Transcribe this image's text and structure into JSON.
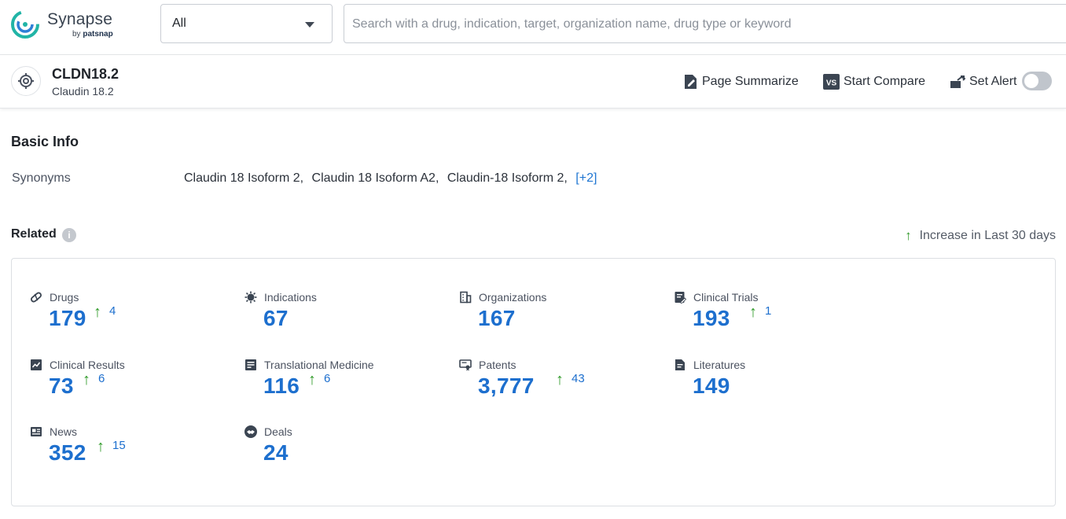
{
  "header": {
    "logo_name": "Synapse",
    "logo_by": "by",
    "logo_brand": "patsnap",
    "scope_select": {
      "value": "All"
    },
    "search": {
      "placeholder": "Search with a drug, indication, target, organization name, drug type or keyword",
      "value": ""
    }
  },
  "entity": {
    "name": "CLDN18.2",
    "subtitle": "Claudin 18.2",
    "actions": {
      "summarize": "Page Summarize",
      "compare": "Start Compare",
      "alert": "Set Alert"
    },
    "alert_enabled": false
  },
  "basic_info": {
    "title": "Basic Info",
    "synonyms_label": "Synonyms",
    "synonyms": [
      "Claudin 18 Isoform 2,",
      "Claudin 18 Isoform A2,",
      "Claudin-18 Isoform 2,"
    ],
    "synonyms_more": "[+2]"
  },
  "related": {
    "title": "Related",
    "increase_note": "Increase in Last 30 days",
    "colors": {
      "count": "#1d6fce",
      "increase_arrow": "#2f9a28"
    },
    "items": [
      {
        "label": "Drugs",
        "icon": "pill-icon",
        "count": "179",
        "increase": "4"
      },
      {
        "label": "Indications",
        "icon": "virus-icon",
        "count": "67",
        "increase": ""
      },
      {
        "label": "Organizations",
        "icon": "building-icon",
        "count": "167",
        "increase": ""
      },
      {
        "label": "Clinical Trials",
        "icon": "clipboard-edit-icon",
        "count": "193",
        "increase": "1"
      },
      {
        "label": "Clinical Results",
        "icon": "chart-report-icon",
        "count": "73",
        "increase": "6"
      },
      {
        "label": "Translational Medicine",
        "icon": "document-list-icon",
        "count": "116",
        "increase": "6"
      },
      {
        "label": "Patents",
        "icon": "certificate-icon",
        "count": "3,777",
        "increase": "43"
      },
      {
        "label": "Literatures",
        "icon": "file-text-icon",
        "count": "149",
        "increase": ""
      },
      {
        "label": "News",
        "icon": "newspaper-icon",
        "count": "352",
        "increase": "15"
      },
      {
        "label": "Deals",
        "icon": "handshake-icon",
        "count": "24",
        "increase": ""
      }
    ]
  }
}
